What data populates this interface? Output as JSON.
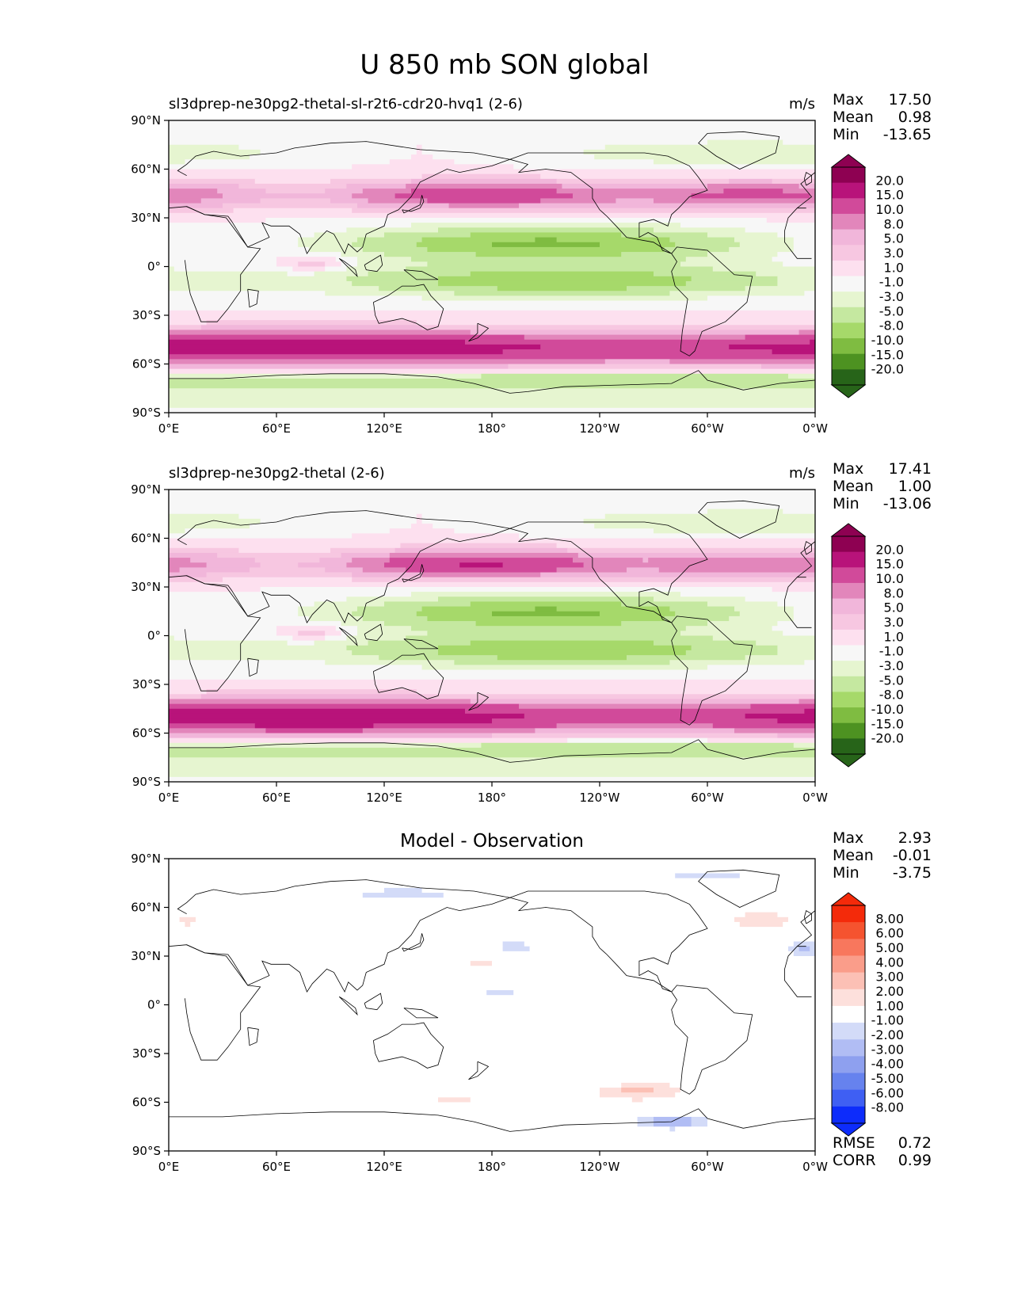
{
  "figure_title": "U 850 mb SON global",
  "x_ticks": [
    "0°E",
    "60°E",
    "120°E",
    "180°",
    "120°W",
    "60°W",
    "0°W"
  ],
  "y_ticks": [
    "90°N",
    "60°N",
    "30°N",
    "0°",
    "30°S",
    "60°S",
    "90°S"
  ],
  "colors": {
    "field": [
      "#276419",
      "#4d9221",
      "#7fbc41",
      "#a6d96a",
      "#c5e8a0",
      "#e6f5d0",
      "#f7f7f7",
      "#fde0ef",
      "#f7c7e1",
      "#f1b6da",
      "#e286bb",
      "#d14a9a",
      "#b8137a",
      "#8e0152"
    ],
    "diff": [
      "#0d2cfb",
      "#3f5ff3",
      "#6682ee",
      "#8ea0ef",
      "#b1bdf4",
      "#d3dbf8",
      "#ffffff",
      "#fde0dc",
      "#fcc0b5",
      "#fa9d8a",
      "#f8775d",
      "#f5532f",
      "#f42a0a"
    ]
  },
  "chart_data": [
    {
      "type": "heatmap",
      "title": "sl3dprep-ne30pg2-thetal-sl-r2t6-cdr20-hvq1 (2-6)",
      "units": "m/s",
      "stats": [
        {
          "label": "Max",
          "value": "17.50"
        },
        {
          "label": "Mean",
          "value": "0.98"
        },
        {
          "label": "Min",
          "value": "-13.65"
        }
      ],
      "colorbar_levels": [
        "20.0",
        "15.0",
        "10.0",
        "8.0",
        "5.0",
        "3.0",
        "1.0",
        "-1.0",
        "-3.0",
        "-5.0",
        "-8.0",
        "-10.0",
        "-15.0",
        "-20.0"
      ],
      "x_range": [
        0,
        360
      ],
      "y_range": [
        -90,
        90
      ]
    },
    {
      "type": "heatmap",
      "title": "sl3dprep-ne30pg2-thetal (2-6)",
      "units": "m/s",
      "stats": [
        {
          "label": "Max",
          "value": "17.41"
        },
        {
          "label": "Mean",
          "value": "1.00"
        },
        {
          "label": "Min",
          "value": "-13.06"
        }
      ],
      "colorbar_levels": [
        "20.0",
        "15.0",
        "10.0",
        "8.0",
        "5.0",
        "3.0",
        "1.0",
        "-1.0",
        "-3.0",
        "-5.0",
        "-8.0",
        "-10.0",
        "-15.0",
        "-20.0"
      ],
      "x_range": [
        0,
        360
      ],
      "y_range": [
        -90,
        90
      ]
    },
    {
      "type": "heatmap",
      "title": "Model - Observation",
      "units": "",
      "stats": [
        {
          "label": "Max",
          "value": "2.93"
        },
        {
          "label": "Mean",
          "value": "-0.01"
        },
        {
          "label": "Min",
          "value": "-3.75"
        }
      ],
      "colorbar_levels": [
        "8.00",
        "6.00",
        "5.00",
        "4.00",
        "3.00",
        "2.00",
        "1.00",
        "-1.00",
        "-2.00",
        "-3.00",
        "-4.00",
        "-5.00",
        "-6.00",
        "-8.00"
      ],
      "extra_stats": [
        {
          "label": "RMSE",
          "value": "0.72"
        },
        {
          "label": "CORR",
          "value": "0.99"
        }
      ],
      "x_range": [
        0,
        360
      ],
      "y_range": [
        -90,
        90
      ]
    }
  ]
}
